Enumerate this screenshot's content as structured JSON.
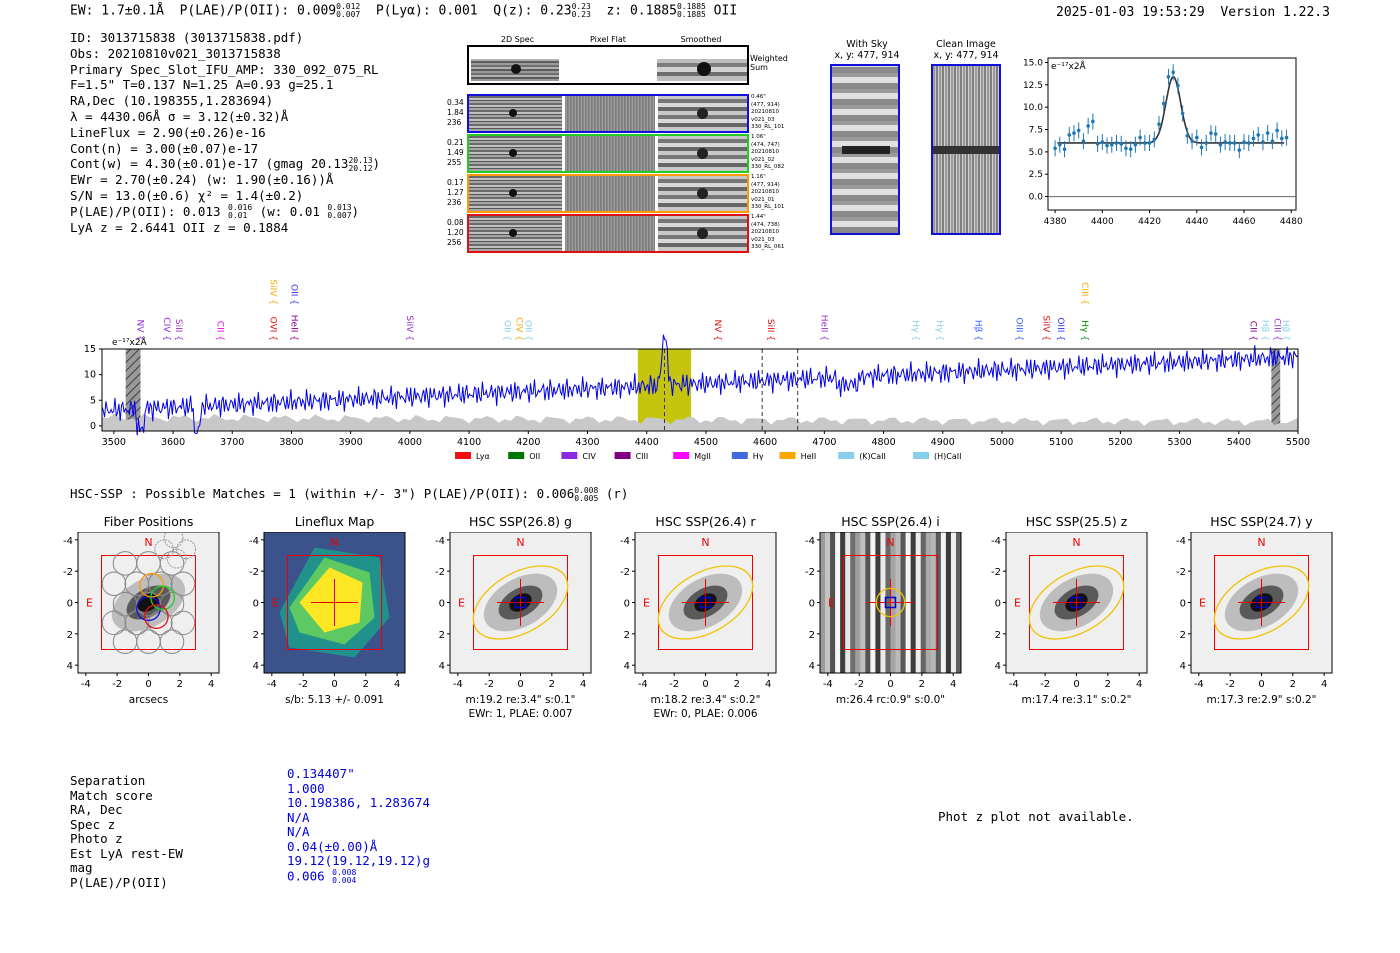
{
  "header": {
    "ew": "EW: 1.7±0.1Å",
    "plae_label": "P(LAE)/P(OII): 0.009",
    "plae_hi": "0.012",
    "plae_lo": "0.007",
    "plya": "P(Lyα): 0.001",
    "qz_label": "Q(z): 0.23",
    "qz_hi": "0.23",
    "qz_lo": "0.23",
    "z_label": "z: 0.1885",
    "z_hi": "0.1885",
    "z_lo": "0.1885",
    "z_line": "OII",
    "datetime": "2025-01-03 19:53:29",
    "version": "Version 1.22.3"
  },
  "info": {
    "id": "ID: 3013715838 (3013715838.pdf)",
    "obs": "Obs: 20210810v021_3013715838",
    "primary": "Primary Spec_Slot_IFU_AMP: 330_092_075_RL",
    "fparams": "F=1.5\"  T=0.137  N=1.25  A=0.93  g=25.1",
    "radec": "RA,Dec (10.198355,1.283694)",
    "lambda": "λ = 4430.06Å  σ = 3.12(±0.32)Å",
    "lineflux": "LineFlux = 2.90(±0.26)e-16",
    "contn": "Cont(n) = 3.00(±0.07)e-17",
    "contw": "Cont(w) = 4.30(±0.01)e-17 (gmag 20.13",
    "contw_hi": "20.13",
    "contw_lo": "20.12",
    "ewr": "EWr = 2.70(±0.24) (w: 1.90(±0.16))Å",
    "sn": "S/N = 13.0(±0.6)  χ² = 1.4(±0.2)",
    "plae": "P(LAE)/P(OII): 0.013",
    "plae_hi": "0.016",
    "plae_lo": "0.01",
    "plae_w": "(w: 0.01",
    "plae_w_hi": "0.013",
    "plae_w_lo": "0.007",
    "lyaz": "LyA z = 2.6441  OII z = 0.1884"
  },
  "spec2d": {
    "col_headers": [
      "2D Spec",
      "Pixel Flat",
      "Smoothed"
    ],
    "weighted_sum": "Weighted\nSum",
    "rows": [
      {
        "nums": [
          "0.34",
          "1.84",
          "236"
        ],
        "meta": [
          "0.46\"",
          "(477, 914)",
          "20210810",
          "v021_03",
          "330_RL_101"
        ],
        "color": "#1010dd"
      },
      {
        "nums": [
          "0.21",
          "1.49",
          "255"
        ],
        "meta": [
          "1.06\"",
          "(474, 747)",
          "20210810",
          "v021_02",
          "330_RL_082"
        ],
        "color": "#22cc22"
      },
      {
        "nums": [
          "0.17",
          "1.27",
          "236"
        ],
        "meta": [
          "1.16\"",
          "(477, 914)",
          "20210810",
          "v021_01",
          "330_RL_101"
        ],
        "color": "#ff9900"
      },
      {
        "nums": [
          "0.08",
          "1.20",
          "256"
        ],
        "meta": [
          "1.44\"",
          "(474, 738)",
          "20210810",
          "v021_03",
          "330_RL_061"
        ],
        "color": "#dd1111"
      }
    ]
  },
  "sky_panels": [
    {
      "title": "With Sky",
      "coords": "x, y: 477, 914"
    },
    {
      "title": "Clean Image",
      "coords": "x, y: 477, 914"
    }
  ],
  "line_fit": {
    "chart_data": {
      "type": "scatter",
      "unit_label": "e⁻¹⁷x2Å",
      "xlim": [
        4377,
        4482
      ],
      "ylim": [
        -1.5,
        15.5
      ],
      "xticks": [
        4380,
        4400,
        4420,
        4440,
        4460,
        4480
      ],
      "yticks": [
        0.0,
        2.5,
        5.0,
        7.5,
        10.0,
        12.5,
        15.0
      ],
      "points_x": [
        4380,
        4382,
        4384,
        4386,
        4388,
        4390,
        4392,
        4394,
        4396,
        4398,
        4400,
        4402,
        4404,
        4406,
        4408,
        4410,
        4412,
        4414,
        4416,
        4418,
        4420,
        4422,
        4424,
        4426,
        4428,
        4430,
        4432,
        4434,
        4436,
        4438,
        4440,
        4442,
        4444,
        4446,
        4448,
        4450,
        4452,
        4454,
        4456,
        4458,
        4460,
        4462,
        4464,
        4466,
        4468,
        4470,
        4472,
        4474,
        4476,
        4478
      ],
      "points_y": [
        5.4,
        5.8,
        5.3,
        6.9,
        7.1,
        7.4,
        6.2,
        7.9,
        8.4,
        5.9,
        6.1,
        5.7,
        5.8,
        6.0,
        5.9,
        5.4,
        5.3,
        5.8,
        6.6,
        6.0,
        6.0,
        6.4,
        8.1,
        10.4,
        13.4,
        13.9,
        12.4,
        9.3,
        6.8,
        6.2,
        6.6,
        5.5,
        6.0,
        7.1,
        7.0,
        5.8,
        6.1,
        6.0,
        6.0,
        5.2,
        6.1,
        6.0,
        6.5,
        6.9,
        6.1,
        7.1,
        6.2,
        7.4,
        6.5,
        6.6
      ],
      "fit": {
        "center": 4430.06,
        "sigma": 3.12,
        "continuum": 6.0,
        "peak": 13.4
      }
    }
  },
  "spectrum": {
    "chart_data": {
      "type": "line",
      "unit_label": "e⁻¹⁷x2Å",
      "xlim": [
        3480,
        5500
      ],
      "ylim": [
        -1,
        15
      ],
      "xticks": [
        3500,
        3600,
        3700,
        3800,
        3900,
        4000,
        4100,
        4200,
        4300,
        4400,
        4500,
        4600,
        4700,
        4800,
        4900,
        5000,
        5100,
        5200,
        5300,
        5400,
        5500
      ],
      "yticks": [
        0,
        5,
        10,
        15
      ],
      "highlight_band": [
        4385,
        4475
      ],
      "hatched_bands": [
        [
          3520,
          3545
        ],
        [
          5455,
          5470
        ]
      ],
      "vlines_dashed": [
        4595,
        4655,
        4430
      ],
      "line_labels": [
        {
          "wave": 3545,
          "name": "NV",
          "color": "#8a2be2",
          "row": "low"
        },
        {
          "wave": 3590,
          "name": "CIV",
          "color": "#8a2be2",
          "row": "low"
        },
        {
          "wave": 3610,
          "name": "SiII",
          "color": "#9932cc",
          "row": "low"
        },
        {
          "wave": 3680,
          "name": "CII",
          "color": "#ee00ee",
          "row": "low"
        },
        {
          "wave": 3770,
          "name": "OVI",
          "color": "#dd1111",
          "row": "low"
        },
        {
          "wave": 3805,
          "name": "HeII",
          "color": "#880088",
          "row": "low"
        },
        {
          "wave": 3770,
          "name": "SiIV",
          "color": "#ffa500",
          "row": "high"
        },
        {
          "wave": 3805,
          "name": "OII",
          "color": "#3030ff",
          "row": "high"
        },
        {
          "wave": 4000,
          "name": "SiIV",
          "color": "#9932cc",
          "row": "low"
        },
        {
          "wave": 4165,
          "name": "OII",
          "color": "#87ceeb",
          "row": "low"
        },
        {
          "wave": 4185,
          "name": "CIV",
          "color": "#ffa500",
          "row": "low"
        },
        {
          "wave": 4200,
          "name": "OII",
          "color": "#87ceeb",
          "row": "low"
        },
        {
          "wave": 4520,
          "name": "NV",
          "color": "#dd1111",
          "row": "low"
        },
        {
          "wave": 4610,
          "name": "SiII",
          "color": "#dd1111",
          "row": "low"
        },
        {
          "wave": 4700,
          "name": "HeII",
          "color": "#9932cc",
          "row": "low"
        },
        {
          "wave": 4855,
          "name": "Hγ",
          "color": "#87ceeb",
          "row": "low"
        },
        {
          "wave": 4895,
          "name": "Hγ",
          "color": "#87ceeb",
          "row": "low"
        },
        {
          "wave": 4960,
          "name": "Hβ",
          "color": "#3060ff",
          "row": "low"
        },
        {
          "wave": 5030,
          "name": "OIII",
          "color": "#3060ff",
          "row": "low"
        },
        {
          "wave": 5075,
          "name": "SiIV",
          "color": "#dd1111",
          "row": "low"
        },
        {
          "wave": 5100,
          "name": "OIII",
          "color": "#3030ff",
          "row": "low"
        },
        {
          "wave": 5140,
          "name": "Hγ",
          "color": "#008800",
          "row": "low"
        },
        {
          "wave": 5140,
          "name": "CIII",
          "color": "#ffa500",
          "row": "high"
        },
        {
          "wave": 5425,
          "name": "CII",
          "color": "#880088",
          "row": "low"
        },
        {
          "wave": 5445,
          "name": "Hβ",
          "color": "#87ceeb",
          "row": "low"
        },
        {
          "wave": 5465,
          "name": "CIII",
          "color": "#9932cc",
          "row": "low"
        },
        {
          "wave": 5480,
          "name": "Hβ",
          "color": "#87ceeb",
          "row": "low"
        }
      ],
      "legend": [
        {
          "name": "Lyα",
          "color": "#ee1111"
        },
        {
          "name": "OII",
          "color": "#007700"
        },
        {
          "name": "CIV",
          "color": "#8a2be2"
        },
        {
          "name": "CIII",
          "color": "#800080"
        },
        {
          "name": "MgII",
          "color": "#ff00ff"
        },
        {
          "name": "Hγ",
          "color": "#4169e1"
        },
        {
          "name": "HeII",
          "color": "#ffa500"
        },
        {
          "name": "(K)CaII",
          "color": "#87ceeb"
        },
        {
          "name": "(H)CaII",
          "color": "#87ceeb"
        }
      ]
    }
  },
  "hsc": {
    "summary": "HSC-SSP : Possible Matches = 1 (within +/- 3\")  P(LAE)/P(OII): 0.006",
    "summary_hi": "0.008",
    "summary_lo": "0.005",
    "summary_band": "(r)",
    "panels": [
      {
        "title": "Fiber Positions",
        "cap1": "arcsecs",
        "cap2": "",
        "kind": "fiber"
      },
      {
        "title": "Lineflux Map",
        "cap1": "s/b: 5.13 +/- 0.091",
        "cap2": "",
        "kind": "lineflux"
      },
      {
        "title": "HSC SSP(26.8) g",
        "cap1": "m:19.2  re:3.4\"  s:0.1\"",
        "cap2": "EWr: 1, PLAE: 0.007",
        "kind": "galaxy"
      },
      {
        "title": "HSC SSP(26.4) r",
        "cap1": "m:18.2  re:3.4\"  s:0.2\"",
        "cap2": "EWr: 0, PLAE: 0.006",
        "kind": "galaxy"
      },
      {
        "title": "HSC SSP(26.4) i",
        "cap1": "m:26.4 rc:0.9\"  s:0.0\"",
        "cap2": "",
        "kind": "stripes"
      },
      {
        "title": "HSC SSP(25.5) z",
        "cap1": "m:17.4  re:3.1\"  s:0.2\"",
        "cap2": "",
        "kind": "galaxy"
      },
      {
        "title": "HSC SSP(24.7) y",
        "cap1": "m:17.3  re:2.9\"  s:0.2\"",
        "cap2": "",
        "kind": "galaxy"
      }
    ],
    "axis_ticks": [
      "-4",
      "-2",
      "0",
      "2",
      "4"
    ],
    "north": "N",
    "east": "E"
  },
  "match": {
    "labels": [
      "Separation",
      "Match score",
      "RA, Dec",
      "Spec z",
      "Photo z",
      "Est LyA rest-EW",
      "mag",
      "P(LAE)/P(OII)"
    ],
    "values": [
      "0.134407\"",
      "1.000",
      "10.198386, 1.283674",
      "N/A",
      "N/A",
      "0.04(±0.00)Å",
      "19.12(19.12,19.12)g",
      "0.006"
    ],
    "plae_hi": "0.008",
    "plae_lo": "0.004"
  },
  "photz_msg": "Phot z plot not available."
}
